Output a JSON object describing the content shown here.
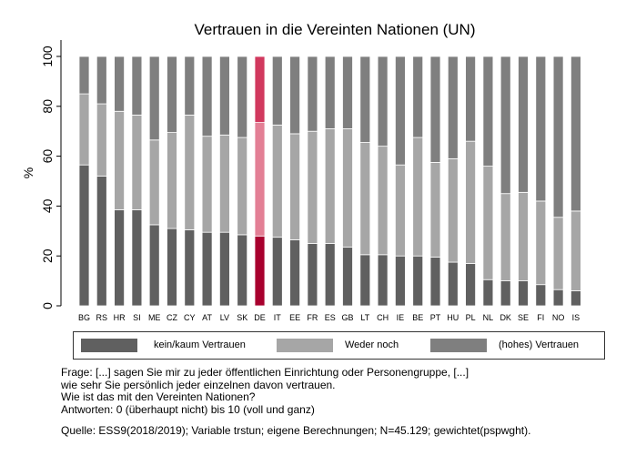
{
  "chart_data": {
    "type": "bar",
    "stacked": true,
    "title": "Vertrauen in die Vereinten Nationen (UN)",
    "ylabel": "%",
    "xlabel": "",
    "ylim": [
      0,
      100
    ],
    "yticks": [
      0,
      20,
      40,
      60,
      80,
      100
    ],
    "grid": false,
    "legend_position": "bottom",
    "categories": [
      "BG",
      "RS",
      "HR",
      "SI",
      "ME",
      "CZ",
      "CY",
      "AT",
      "LV",
      "SK",
      "DE",
      "IT",
      "EE",
      "FR",
      "ES",
      "GB",
      "LT",
      "CH",
      "IE",
      "BE",
      "PT",
      "HU",
      "PL",
      "NL",
      "DK",
      "SE",
      "FI",
      "NO",
      "IS"
    ],
    "highlight_category": "DE",
    "series": [
      {
        "name": "kein/kaum Vertrauen",
        "color": "#606060",
        "highlight_color": "#a8002e",
        "values": [
          56.5,
          52,
          38.5,
          38.5,
          32.5,
          31,
          30.5,
          29.5,
          29.5,
          28.5,
          28,
          27.5,
          26.5,
          25,
          25,
          23.5,
          20.5,
          20.5,
          20,
          20,
          19.5,
          17.5,
          17,
          10.5,
          10,
          10,
          8.5,
          6.5,
          6
        ]
      },
      {
        "name": "Weder noch",
        "color": "#a6a6a6",
        "highlight_color": "#e37f95",
        "values": [
          28.5,
          29,
          39.5,
          38,
          34,
          38.5,
          46,
          38.5,
          39,
          39,
          45.5,
          45,
          42.5,
          45,
          46,
          47.5,
          45,
          43.5,
          36.5,
          47.5,
          38,
          41.5,
          49,
          45.5,
          35,
          35.5,
          33.5,
          29,
          32
        ]
      },
      {
        "name": "(hohes) Vertrauen",
        "color": "#7f7f7f",
        "highlight_color": "#d1395e",
        "values": [
          15,
          19,
          22,
          23.5,
          33.5,
          30.5,
          23.5,
          32,
          31.5,
          32.5,
          26.5,
          27.5,
          31,
          30,
          29,
          29,
          34.5,
          36,
          43.5,
          32.5,
          42.5,
          41,
          34,
          44,
          55,
          54.5,
          58,
          64.5,
          62
        ]
      }
    ]
  },
  "notes": {
    "line1": "Frage: [...] sagen Sie mir zu jeder öffentlichen Einrichtung oder Personengruppe, [...]",
    "line2": "wie sehr Sie persönlich jeder einzelnen davon vertrauen.",
    "line3": "Wie ist das mit den Vereinten Nationen?",
    "line4": "Antworten: 0 (überhaupt nicht) bis 10 (voll und ganz)"
  },
  "source": "Quelle: ESS9(2018/2019); Variable trstun; eigene Berechnungen; N=45.129; gewichtet(pspwght)."
}
